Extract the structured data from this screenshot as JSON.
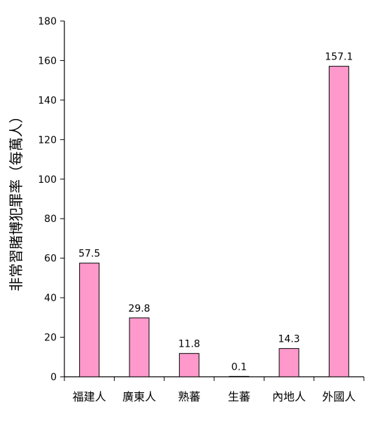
{
  "chart_data": {
    "type": "bar",
    "title": "",
    "xlabel": "",
    "ylabel": "非常習賭博犯罪率（每萬人）",
    "categories": [
      "福建人",
      "廣東人",
      "熟蕃",
      "生蕃",
      "內地人",
      "外國人"
    ],
    "values": [
      57.5,
      29.8,
      11.8,
      0.1,
      14.3,
      157.1
    ],
    "data_labels": [
      "57.5",
      "29.8",
      "11.8",
      "0.1",
      "14.3",
      "157.1"
    ],
    "ylim": [
      0,
      180
    ],
    "yticks": [
      0,
      20,
      40,
      60,
      80,
      100,
      120,
      140,
      160,
      180
    ],
    "grid": false,
    "legend": "none",
    "colors": {
      "bar_fill": "#ff99cc",
      "bar_stroke": "#000000",
      "axis": "#000000",
      "background": "#ffffff"
    }
  }
}
